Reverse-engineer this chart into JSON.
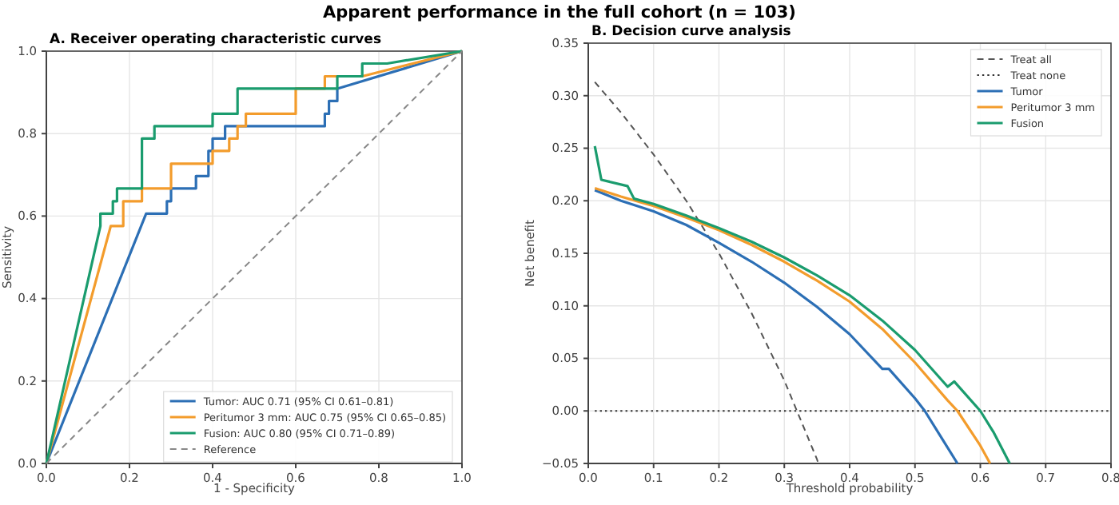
{
  "chart_data": [
    {
      "type": "line",
      "title": "A. Receiver operating characteristic curves",
      "annotations": [
        "Apparent performance in the full cohort (n = 103)"
      ],
      "xlabel": "1 - Specificity",
      "ylabel": "Sensitivity",
      "xlim": [
        0,
        1
      ],
      "ylim": [
        0,
        1
      ],
      "xticks": [
        {
          "value": 0,
          "label": "0.0"
        },
        {
          "value": 0.2,
          "label": "0.2"
        },
        {
          "value": 0.4,
          "label": "0.4"
        },
        {
          "value": 0.6,
          "label": "0.6"
        },
        {
          "value": 0.8,
          "label": "0.8"
        },
        {
          "value": 1,
          "label": "1.0"
        }
      ],
      "yticks": [
        {
          "value": 0,
          "label": "0.0"
        },
        {
          "value": 0.2,
          "label": "0.2"
        },
        {
          "value": 0.4,
          "label": "0.4"
        },
        {
          "value": 0.6,
          "label": "0.6"
        },
        {
          "value": 0.8,
          "label": "0.8"
        },
        {
          "value": 1,
          "label": "1.0"
        }
      ],
      "grid": true,
      "legend": "bottom right",
      "series": [
        {
          "name": "Tumor: AUC 0.71 (95% CI 0.61–0.81)",
          "color": "#2c6fb5",
          "x": [
            0,
            0.24,
            0.29,
            0.29,
            0.3,
            0.3,
            0.36,
            0.36,
            0.39,
            0.39,
            0.4,
            0.4,
            0.43,
            0.43,
            0.67,
            0.67,
            0.68,
            0.68,
            0.7,
            0.7,
            1
          ],
          "values": [
            0,
            0.606,
            0.606,
            0.636,
            0.636,
            0.667,
            0.667,
            0.697,
            0.697,
            0.758,
            0.758,
            0.788,
            0.788,
            0.818,
            0.818,
            0.848,
            0.848,
            0.879,
            0.879,
            0.909,
            1
          ]
        },
        {
          "name": "Peritumor 3 mm: AUC 0.75 (95% CI 0.65–0.85)",
          "color": "#f39c2c",
          "x": [
            0,
            0.155,
            0.185,
            0.185,
            0.23,
            0.23,
            0.3,
            0.3,
            0.4,
            0.4,
            0.44,
            0.44,
            0.46,
            0.46,
            0.48,
            0.48,
            0.6,
            0.6,
            0.67,
            0.67,
            0.76,
            1
          ],
          "values": [
            0,
            0.576,
            0.576,
            0.636,
            0.636,
            0.667,
            0.667,
            0.727,
            0.727,
            0.758,
            0.758,
            0.788,
            0.788,
            0.818,
            0.818,
            0.848,
            0.848,
            0.909,
            0.909,
            0.939,
            0.939,
            1
          ]
        },
        {
          "name": "Fusion: AUC 0.80 (95% CI 0.71–0.89)",
          "color": "#1a9c6e",
          "x": [
            0,
            0.13,
            0.13,
            0.16,
            0.16,
            0.17,
            0.17,
            0.23,
            0.23,
            0.26,
            0.26,
            0.4,
            0.4,
            0.46,
            0.46,
            0.7,
            0.7,
            0.76,
            0.76,
            0.82,
            1
          ],
          "values": [
            0,
            0.576,
            0.606,
            0.606,
            0.636,
            0.636,
            0.667,
            0.667,
            0.788,
            0.788,
            0.818,
            0.818,
            0.848,
            0.848,
            0.909,
            0.909,
            0.939,
            0.939,
            0.97,
            0.97,
            1
          ]
        },
        {
          "name": "Reference",
          "color": "#888888",
          "line_style": "dashed",
          "x": [
            0,
            1
          ],
          "values": [
            0,
            1
          ]
        }
      ]
    },
    {
      "type": "line",
      "title": "B. Decision curve analysis",
      "xlabel": "Threshold probability",
      "ylabel": "Net benefit",
      "xlim": [
        0,
        0.8
      ],
      "ylim": [
        -0.05,
        0.35
      ],
      "xticks": [
        {
          "value": 0,
          "label": "0.0"
        },
        0.1,
        0.2,
        0.3,
        0.4,
        0.5,
        0.6,
        0.7,
        0.8
      ],
      "yticks": [
        {
          "value": -0.05,
          "label": "−0.05"
        },
        {
          "value": 0,
          "label": "0.00"
        },
        0.05,
        {
          "value": 0.1,
          "label": "0.10"
        },
        0.15,
        {
          "value": 0.2,
          "label": "0.20"
        },
        0.25,
        {
          "value": 0.3,
          "label": "0.30"
        },
        0.35
      ],
      "grid": true,
      "legend": "top right",
      "series": [
        {
          "name": "Treat all",
          "color": "#555555",
          "line_style": "dashed",
          "x": [
            0.01,
            0.05,
            0.1,
            0.15,
            0.2,
            0.25,
            0.3,
            0.35,
            0.352
          ],
          "values": [
            0.313,
            0.284,
            0.244,
            0.2,
            0.15,
            0.093,
            0.029,
            -0.046,
            -0.05
          ]
        },
        {
          "name": "Treat none",
          "color": "#333333",
          "line_style": "dotted",
          "x": [
            0.01,
            0.8
          ],
          "values": [
            0,
            0
          ]
        },
        {
          "name": "Tumor",
          "color": "#2c6fb5",
          "x": [
            0.01,
            0.05,
            0.07,
            0.1,
            0.15,
            0.2,
            0.25,
            0.3,
            0.35,
            0.4,
            0.45,
            0.46,
            0.5,
            0.515,
            0.54,
            0.565
          ],
          "values": [
            0.21,
            0.2,
            0.196,
            0.19,
            0.177,
            0.16,
            0.142,
            0.122,
            0.099,
            0.073,
            0.04,
            0.04,
            0.012,
            0,
            -0.025,
            -0.05
          ]
        },
        {
          "name": "Peritumor 3 mm",
          "color": "#f39c2c",
          "x": [
            0.01,
            0.05,
            0.1,
            0.15,
            0.2,
            0.25,
            0.3,
            0.35,
            0.4,
            0.45,
            0.5,
            0.55,
            0.565,
            0.6,
            0.615
          ],
          "values": [
            0.212,
            0.204,
            0.195,
            0.184,
            0.172,
            0.158,
            0.142,
            0.124,
            0.104,
            0.078,
            0.046,
            0.01,
            0,
            -0.033,
            -0.05
          ]
        },
        {
          "name": "Fusion",
          "color": "#1a9c6e",
          "x": [
            0.01,
            0.02,
            0.06,
            0.07,
            0.1,
            0.15,
            0.2,
            0.25,
            0.3,
            0.35,
            0.4,
            0.45,
            0.5,
            0.55,
            0.56,
            0.6,
            0.62,
            0.645
          ],
          "values": [
            0.252,
            0.22,
            0.214,
            0.202,
            0.197,
            0.186,
            0.174,
            0.161,
            0.146,
            0.129,
            0.11,
            0.086,
            0.058,
            0.023,
            0.028,
            0,
            -0.02,
            -0.05
          ]
        }
      ]
    }
  ]
}
